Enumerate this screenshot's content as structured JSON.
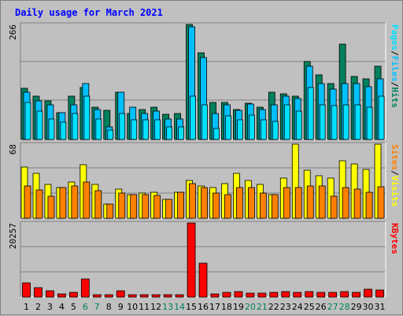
{
  "title": "Daily usage for March 2021",
  "colors": {
    "hits": "#00805c",
    "files": "#00c0ff",
    "pages": "#00e0ff",
    "visits": "#ffff00",
    "sites": "#ff8000",
    "kbytes": "#ff0000",
    "plot_bg": "#c0c0c0",
    "weekend_day": "#00805c",
    "weekday": "#000080"
  },
  "chart_data": [
    {
      "type": "bar",
      "title": "Daily usage for March 2021",
      "categories": [
        "1",
        "2",
        "3",
        "4",
        "5",
        "6",
        "7",
        "8",
        "9",
        "10",
        "11",
        "12",
        "13",
        "14",
        "15",
        "16",
        "17",
        "18",
        "19",
        "20",
        "21",
        "22",
        "23",
        "24",
        "25",
        "26",
        "27",
        "28",
        "29",
        "30",
        "31"
      ],
      "weekend_days": [
        "6",
        "7",
        "13",
        "14",
        "20",
        "21",
        "27",
        "28"
      ],
      "ymax_label": "266",
      "ylim": [
        0,
        266
      ],
      "legend": [
        "Pages",
        "/",
        "Files",
        "/",
        "Hits"
      ],
      "series": [
        {
          "name": "Hits",
          "values": [
            118,
            100,
            90,
            62,
            100,
            120,
            75,
            68,
            110,
            60,
            70,
            75,
            58,
            60,
            266,
            200,
            85,
            86,
            70,
            84,
            75,
            110,
            105,
            100,
            180,
            150,
            130,
            220,
            145,
            140,
            170
          ]
        },
        {
          "name": "Files",
          "values": [
            110,
            90,
            80,
            62,
            80,
            130,
            70,
            30,
            110,
            75,
            60,
            65,
            48,
            48,
            260,
            190,
            60,
            80,
            68,
            82,
            70,
            80,
            100,
            95,
            170,
            130,
            116,
            130,
            130,
            122,
            140
          ]
        },
        {
          "name": "Pages",
          "values": [
            85,
            66,
            48,
            40,
            60,
            100,
            48,
            22,
            60,
            45,
            45,
            45,
            30,
            30,
            100,
            80,
            25,
            55,
            45,
            57,
            45,
            42,
            80,
            65,
            120,
            80,
            78,
            80,
            80,
            75,
            100
          ]
        }
      ]
    },
    {
      "type": "bar",
      "categories": [
        "1",
        "2",
        "3",
        "4",
        "5",
        "6",
        "7",
        "8",
        "9",
        "10",
        "11",
        "12",
        "13",
        "14",
        "15",
        "16",
        "17",
        "18",
        "19",
        "20",
        "21",
        "22",
        "23",
        "24",
        "25",
        "26",
        "27",
        "28",
        "29",
        "30",
        "31"
      ],
      "ymax_label": "68",
      "ylim": [
        0,
        68
      ],
      "legend": [
        "Sites",
        "/",
        "Visits"
      ],
      "series": [
        {
          "name": "Visits",
          "values": [
            47,
            41,
            31,
            28,
            33,
            49,
            31,
            13,
            27,
            22,
            23,
            24,
            17,
            24,
            35,
            30,
            28,
            32,
            41,
            35,
            31,
            22,
            37,
            68,
            44,
            39,
            37,
            53,
            50,
            45,
            68
          ]
        },
        {
          "name": "Sites",
          "values": [
            30,
            26,
            20,
            28,
            30,
            33,
            25,
            13,
            23,
            22,
            22,
            21,
            17,
            24,
            32,
            28,
            23,
            22,
            28,
            28,
            23,
            22,
            28,
            28,
            30,
            30,
            20,
            28,
            27,
            24,
            29
          ]
        }
      ]
    },
    {
      "type": "bar",
      "categories": [
        "1",
        "2",
        "3",
        "4",
        "5",
        "6",
        "7",
        "8",
        "9",
        "10",
        "11",
        "12",
        "13",
        "14",
        "15",
        "16",
        "17",
        "18",
        "19",
        "20",
        "21",
        "22",
        "23",
        "24",
        "25",
        "26",
        "27",
        "28",
        "29",
        "30",
        "31"
      ],
      "ymax_label": "20257",
      "ylim": [
        0,
        20257
      ],
      "legend": [
        "KBytes"
      ],
      "series": [
        {
          "name": "KBytes",
          "values": [
            3800,
            2500,
            1700,
            800,
            1300,
            5000,
            700,
            700,
            1700,
            700,
            700,
            700,
            700,
            700,
            20257,
            9200,
            800,
            1400,
            1600,
            1000,
            1000,
            1300,
            1500,
            1200,
            1600,
            1400,
            1400,
            1500,
            1400,
            2200,
            2000
          ]
        }
      ]
    }
  ]
}
